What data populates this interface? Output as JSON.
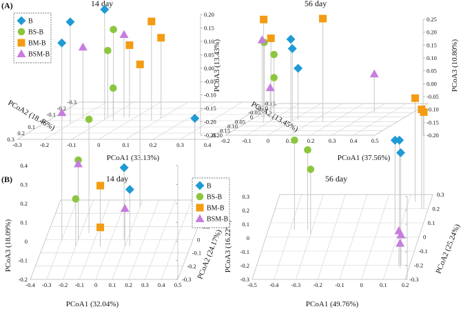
{
  "panel_labels": [
    "(A)",
    "(B)"
  ],
  "legend": {
    "entries": [
      {
        "name": "B",
        "marker": "diamond",
        "color": "#1f9ad6"
      },
      {
        "name": "BS-B",
        "marker": "circle",
        "color": "#8cc63f"
      },
      {
        "name": "BM-B",
        "marker": "square",
        "color": "#f39c12"
      },
      {
        "name": "BSM-B",
        "marker": "triangle",
        "color": "#c77dde"
      }
    ]
  },
  "chart_data": [
    {
      "type": "scatter3d",
      "panel": "A",
      "title": "14 day",
      "xlabel": "PCoA1 (33.13%)",
      "ylabel": "PCoA2 (18.46%)",
      "zlabel": "PCoA3 (13.43%)",
      "xlim": [
        -0.3,
        0.4
      ],
      "ylim": [
        -0.3,
        0.3
      ],
      "zlim": [
        -0.25,
        0.2
      ],
      "xticks": [
        "-0.3",
        "-0.2",
        "-0.1",
        "0",
        "0.1",
        "0.2",
        "0.3",
        "0.4"
      ],
      "yticks": [
        "-0.3",
        "-0.2",
        "-0.1",
        "0",
        "0.1",
        "0.2",
        "0.3"
      ],
      "zticks": [
        "-0.25",
        "-0.20",
        "-0.15",
        "-0.10",
        "-0.05",
        "0.00",
        "0.05",
        "0.10",
        "0.15",
        "0.20"
      ],
      "series": [
        {
          "name": "B",
          "points": [
            [
              -0.25,
              0.0,
              0.04
            ],
            [
              -0.2,
              0.05,
              0.13
            ],
            [
              -0.1,
              -0.02,
              0.16
            ]
          ]
        },
        {
          "name": "BS-B",
          "points": [
            [
              -0.06,
              0.0,
              0.09
            ],
            [
              -0.1,
              -0.05,
              0.0
            ],
            [
              -0.08,
              -0.05,
              -0.14
            ]
          ]
        },
        {
          "name": "BM-B",
          "points": [
            [
              0.08,
              0.0,
              0.12
            ],
            [
              -0.02,
              -0.05,
              0.02
            ],
            [
              0.1,
              -0.04,
              0.05
            ]
          ]
        },
        {
          "name": "BSM-B",
          "points": [
            [
              -0.04,
              -0.05,
              0.06
            ],
            [
              -0.18,
              -0.02,
              0.02
            ]
          ]
        }
      ]
    },
    {
      "type": "scatter3d",
      "panel": "A",
      "title": "56 day",
      "xlabel": "PCoA1 (37.56%)",
      "ylabel": "PCoA2 (13.45%)",
      "zlabel": "PCoA3 (10.80%)",
      "xlim": [
        -0.2,
        0.5
      ],
      "ylim": [
        -0.15,
        0.2
      ],
      "zlim": [
        -0.2,
        0.25
      ],
      "xticks": [
        "-0.2",
        "-0.1",
        "0",
        "0.1",
        "0.2",
        "0.3",
        "0.4",
        "0.5"
      ],
      "yticks": [
        "-0.15",
        "-0.10",
        "-0.05",
        "0",
        "0.05",
        "0.10",
        "0.15",
        "0.20"
      ],
      "zticks": [
        "-0.20",
        "-0.15",
        "-0.10",
        "-0.05",
        "0.00",
        "0.05",
        "0.10",
        "0.15",
        "0.20",
        "0.25"
      ],
      "series": [
        {
          "name": "B",
          "points": [
            [
              0.0,
              0.05,
              0.12
            ],
            [
              0.0,
              0.04,
              0.08
            ],
            [
              0.02,
              0.03,
              0.0
            ]
          ]
        },
        {
          "name": "BS-B",
          "points": [
            [
              -0.16,
              0.0,
              0.09
            ],
            [
              -0.1,
              0.02,
              0.05
            ],
            [
              -0.1,
              0.02,
              -0.04
            ]
          ]
        },
        {
          "name": "BM-B",
          "points": [
            [
              -0.12,
              0.06,
              0.2
            ],
            [
              -0.1,
              0.04,
              0.12
            ],
            [
              0.15,
              0.05,
              0.2
            ]
          ]
        },
        {
          "name": "BSM-B",
          "points": [
            [
              -0.17,
              0.0,
              0.1
            ],
            [
              -0.16,
              -0.04,
              -0.1
            ],
            [
              0.32,
              -0.05,
              -0.05
            ]
          ]
        }
      ]
    },
    {
      "type": "scatter3d",
      "panel": "B",
      "title": "14 day",
      "xlabel": "PCoA1 (32.04%)",
      "ylabel": "PCoA2 (24.17%)",
      "zlabel": "PCoA3 (18.09%)",
      "xlim": [
        -0.4,
        0.5
      ],
      "ylim": [
        -0.3,
        0.3
      ],
      "zlim": [
        -0.2,
        0.4
      ],
      "xticks": [
        "-0.4",
        "-0.3",
        "-0.2",
        "-0.1",
        "0",
        "0.1",
        "0.2",
        "0.3",
        "0.4",
        "0.5"
      ],
      "yticks": [
        "-0.3",
        "-0.2",
        "-0.1",
        "0",
        "0.1",
        "0.2",
        "0.3"
      ],
      "zticks": [
        "-0.2",
        "-0.1",
        "0",
        "0.1",
        "0.2",
        "0.3",
        "0.4"
      ],
      "series": [
        {
          "name": "B",
          "points": [
            [
              0.45,
              0.2,
              0.3
            ],
            [
              0.08,
              0.0,
              0.18
            ],
            [
              0.13,
              -0.05,
              0.1
            ]
          ]
        },
        {
          "name": "BS-B",
          "points": [
            [
              -0.15,
              0.05,
              0.4
            ],
            [
              -0.2,
              0.0,
              0.22
            ],
            [
              -0.2,
              -0.05,
              0.05
            ]
          ]
        },
        {
          "name": "BM-B",
          "points": [
            [
              0.1,
              0.25,
              0.55
            ],
            [
              -0.05,
              -0.05,
              0.12
            ],
            [
              -0.05,
              -0.05,
              -0.1
            ]
          ]
        },
        {
          "name": "BSM-B",
          "points": [
            [
              -0.3,
              0.0,
              0.47
            ],
            [
              -0.2,
              0.0,
              0.2
            ],
            [
              0.1,
              -0.05,
              0.0
            ]
          ]
        }
      ]
    },
    {
      "type": "scatter3d",
      "panel": "B",
      "title": "56 day",
      "xlabel": "PCoA1 (49.76%)",
      "ylabel": "PCoA2 (25.24%)",
      "zlabel": "PCoA3 (16.22%)",
      "xlim": [
        -0.5,
        0.2
      ],
      "ylim": [
        -0.3,
        0.3
      ],
      "zlim": [
        -0.3,
        0.3
      ],
      "xticks": [
        "-0.5",
        "-0.4",
        "-0.3",
        "-0.2",
        "-0.1",
        "0",
        "0.1",
        "0.2"
      ],
      "yticks": [
        "-0.3",
        "-0.2",
        "-0.1",
        "0",
        "0.1",
        "0.2",
        "0.3"
      ],
      "zticks": [
        "-0.3",
        "-0.2",
        "-0.1",
        "0",
        "0.1",
        "0.2",
        "0.3"
      ],
      "series": [
        {
          "name": "B",
          "points": [
            [
              0.08,
              0.05,
              0.35
            ],
            [
              0.1,
              0.05,
              0.35
            ],
            [
              0.11,
              0.03,
              0.28
            ]
          ]
        },
        {
          "name": "BS-B",
          "points": [
            [
              -0.38,
              0.05,
              0.35
            ],
            [
              -0.32,
              0.05,
              0.28
            ],
            [
              -0.3,
              0.02,
              0.17
            ]
          ]
        },
        {
          "name": "BM-B",
          "points": [
            [
              0.13,
              0.25,
              0.45
            ],
            [
              0.17,
              0.2,
              0.42
            ],
            [
              0.18,
              0.2,
              0.4
            ]
          ]
        },
        {
          "name": "BSM-B",
          "points": [
            [
              0.15,
              -0.2,
              -0.05
            ],
            [
              0.16,
              -0.2,
              -0.08
            ],
            [
              0.16,
              -0.22,
              -0.12
            ]
          ]
        }
      ]
    }
  ]
}
